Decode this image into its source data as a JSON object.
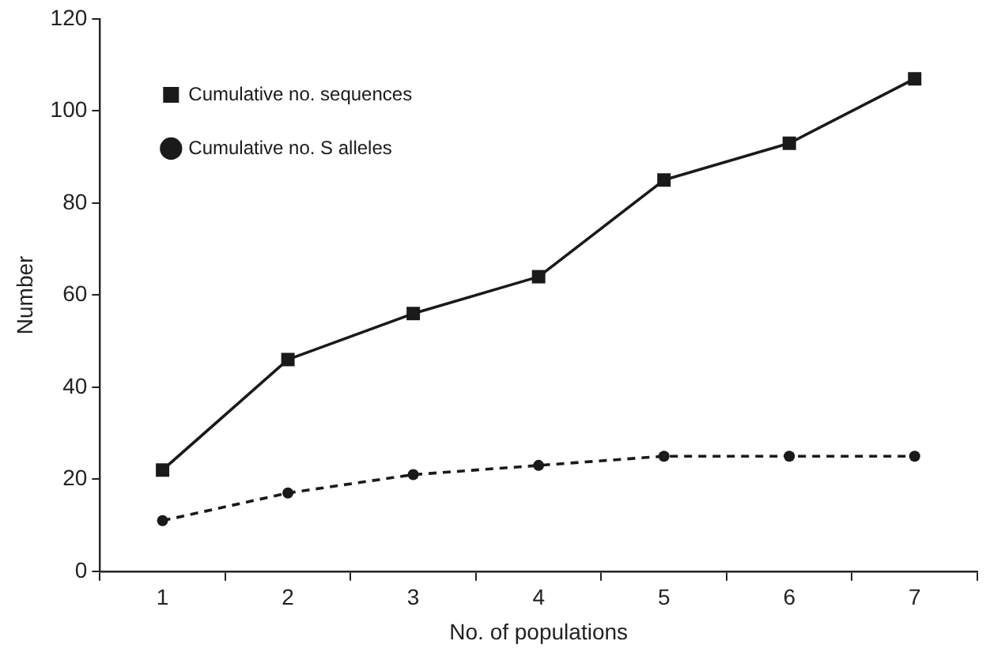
{
  "chart_data": {
    "type": "line",
    "xlabel": "No. of populations",
    "ylabel": "Number",
    "categories": [
      "1",
      "2",
      "3",
      "4",
      "5",
      "6",
      "7"
    ],
    "series": [
      {
        "name": "Cumulative no. sequences",
        "color": "#1a1a1a",
        "marker": "square",
        "line_style": "solid",
        "values": [
          22,
          46,
          56,
          64,
          85,
          93,
          107
        ]
      },
      {
        "name": "Cumulative no. S alleles",
        "color": "#1a1a1a",
        "marker": "circle",
        "line_style": "dashed",
        "values": [
          11,
          17,
          21,
          23,
          25,
          25,
          25
        ]
      }
    ],
    "ylim": [
      0,
      120
    ],
    "yticks": [
      0,
      20,
      40,
      60,
      80,
      100,
      120
    ],
    "grid": false,
    "legend": "top left"
  }
}
